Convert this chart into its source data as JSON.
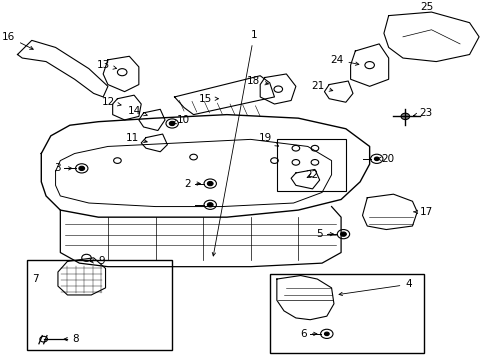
{
  "title": "",
  "bg_color": "#ffffff",
  "line_color": "#000000",
  "figsize": [
    4.9,
    3.6
  ],
  "dpi": 100
}
